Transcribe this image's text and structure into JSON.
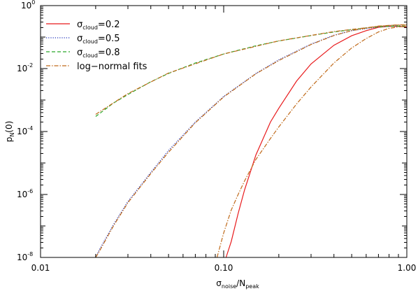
{
  "chart_data": {
    "type": "line",
    "x_scale": "log",
    "y_scale": "log",
    "xlim": [
      0.01,
      1.0
    ],
    "ylim": [
      1e-08,
      1
    ],
    "x_ticks": [
      {
        "value": 0.01,
        "label": "0.01"
      },
      {
        "value": 0.1,
        "label": "0.10"
      },
      {
        "value": 1.0,
        "label": "1.00"
      }
    ],
    "y_ticks": [
      {
        "value": 1,
        "base": "10",
        "exp": "0"
      },
      {
        "value": 0.01,
        "base": "10",
        "exp": "-2"
      },
      {
        "value": 0.0001,
        "base": "10",
        "exp": "-4"
      },
      {
        "value": 1e-06,
        "base": "10",
        "exp": "-6"
      },
      {
        "value": 1e-08,
        "base": "10",
        "exp": "-8"
      }
    ],
    "xlabel": {
      "sigma": "σ",
      "sigma_sub": "noise",
      "slash": "/N",
      "n_sub": "peak"
    },
    "ylabel": {
      "p": "p",
      "p_sub": "N",
      "rest": "(0)"
    },
    "legend_position": "top-left",
    "series": [
      {
        "name": {
          "sigma": "σ",
          "sub": "cloud",
          "rest": "=0.2"
        },
        "color": "#e8191b",
        "dash": "solid",
        "points": [
          [
            0.103,
            1e-08
          ],
          [
            0.11,
            3.2e-08
          ],
          [
            0.12,
            2.5e-07
          ],
          [
            0.13,
            1.4e-06
          ],
          [
            0.15,
            1.8e-05
          ],
          [
            0.18,
            0.0002
          ],
          [
            0.2,
            0.00055
          ],
          [
            0.25,
            0.004
          ],
          [
            0.3,
            0.014
          ],
          [
            0.4,
            0.055
          ],
          [
            0.5,
            0.11
          ],
          [
            0.6,
            0.16
          ],
          [
            0.7,
            0.205
          ],
          [
            0.8,
            0.22
          ],
          [
            0.9,
            0.22
          ],
          [
            1.0,
            0.21
          ]
        ]
      },
      {
        "name": {
          "sigma": "σ",
          "sub": "cloud",
          "rest": "=0.5"
        },
        "color": "#2233bb",
        "dash": "dot",
        "points": [
          [
            0.02,
            1e-08
          ],
          [
            0.021,
            1.8e-08
          ],
          [
            0.025,
            1.1e-07
          ],
          [
            0.03,
            6e-07
          ],
          [
            0.04,
            5e-06
          ],
          [
            0.05,
            2.5e-05
          ],
          [
            0.07,
            0.0002
          ],
          [
            0.1,
            0.0013
          ],
          [
            0.15,
            0.007
          ],
          [
            0.2,
            0.019
          ],
          [
            0.3,
            0.06
          ],
          [
            0.4,
            0.115
          ],
          [
            0.5,
            0.16
          ],
          [
            0.7,
            0.21
          ],
          [
            0.85,
            0.225
          ],
          [
            1.0,
            0.22
          ]
        ]
      },
      {
        "name": {
          "sigma": "σ",
          "sub": "cloud",
          "rest": "=0.8"
        },
        "color": "#2aa82a",
        "dash": "dash",
        "points": [
          [
            0.02,
            0.0003
          ],
          [
            0.025,
            0.0008
          ],
          [
            0.03,
            0.0015
          ],
          [
            0.04,
            0.0038
          ],
          [
            0.05,
            0.007
          ],
          [
            0.07,
            0.015
          ],
          [
            0.1,
            0.029
          ],
          [
            0.15,
            0.053
          ],
          [
            0.2,
            0.075
          ],
          [
            0.3,
            0.112
          ],
          [
            0.4,
            0.145
          ],
          [
            0.5,
            0.172
          ],
          [
            0.6,
            0.195
          ],
          [
            0.7,
            0.21
          ],
          [
            0.8,
            0.22
          ],
          [
            0.9,
            0.225
          ],
          [
            1.0,
            0.22
          ]
        ]
      },
      {
        "name": {
          "sigma": "",
          "sub": "",
          "rest": "log−normal fits"
        },
        "color": "#c06a1a",
        "dash": "dashdot",
        "points": [
          [
            0.02,
            0.00035
          ],
          [
            0.03,
            0.0016
          ],
          [
            0.05,
            0.0072
          ],
          [
            0.1,
            0.029
          ],
          [
            0.2,
            0.076
          ],
          [
            0.4,
            0.15
          ],
          [
            0.7,
            0.22
          ],
          [
            0.9,
            0.245
          ],
          [
            1.0,
            0.245
          ]
        ],
        "extra_curves": [
          [
            [
              0.02,
              1e-08
            ],
            [
              0.021,
              1.6e-08
            ],
            [
              0.025,
              1e-07
            ],
            [
              0.03,
              5.5e-07
            ],
            [
              0.04,
              4.6e-06
            ],
            [
              0.05,
              2.2e-05
            ],
            [
              0.07,
              0.00019
            ],
            [
              0.1,
              0.00125
            ],
            [
              0.15,
              0.0068
            ],
            [
              0.2,
              0.018
            ],
            [
              0.3,
              0.058
            ],
            [
              0.4,
              0.112
            ],
            [
              0.5,
              0.16
            ],
            [
              0.7,
              0.225
            ],
            [
              0.85,
              0.24
            ],
            [
              1.0,
              0.24
            ]
          ],
          [
            [
              0.092,
              1e-08
            ],
            [
              0.1,
              6e-08
            ],
            [
              0.11,
              3.2e-07
            ],
            [
              0.12,
              1e-06
            ],
            [
              0.13,
              2.7e-06
            ],
            [
              0.15,
              1.3e-05
            ],
            [
              0.18,
              6e-05
            ],
            [
              0.2,
              0.00014
            ],
            [
              0.25,
              0.00075
            ],
            [
              0.3,
              0.0026
            ],
            [
              0.4,
              0.015
            ],
            [
              0.5,
              0.045
            ],
            [
              0.6,
              0.09
            ],
            [
              0.7,
              0.145
            ],
            [
              0.8,
              0.19
            ],
            [
              0.9,
              0.21
            ],
            [
              1.0,
              0.22
            ]
          ]
        ]
      }
    ]
  }
}
